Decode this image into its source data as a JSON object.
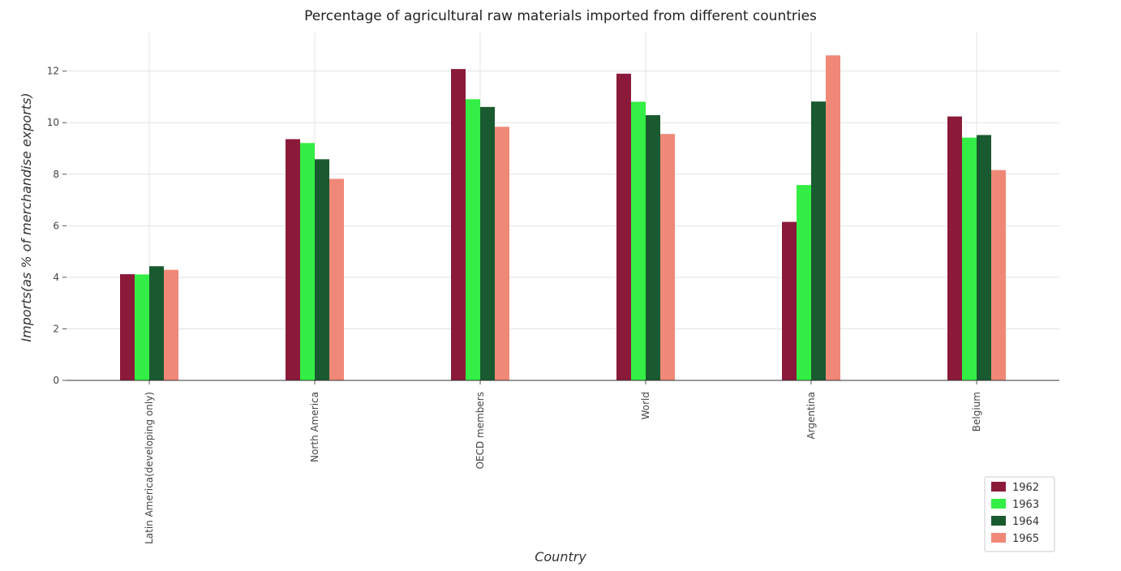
{
  "chart_data": {
    "type": "bar",
    "title": "Percentage of agricultural raw materials imported from different countries",
    "xlabel": "Country",
    "ylabel": "Imports(as % of merchandise exports)",
    "categories": [
      "Latin America(developing only)",
      "North America",
      "OECD members",
      "World",
      "Argentina",
      "Belgium"
    ],
    "series": [
      {
        "name": "1962",
        "color": "#8b1a3a",
        "values": [
          4.12,
          9.36,
          12.08,
          11.9,
          6.15,
          10.24
        ]
      },
      {
        "name": "1963",
        "color": "#33ee44",
        "values": [
          4.11,
          9.21,
          10.91,
          10.81,
          7.58,
          9.42
        ]
      },
      {
        "name": "1964",
        "color": "#1a5a30",
        "values": [
          4.43,
          8.58,
          10.61,
          10.29,
          10.82,
          9.52
        ]
      },
      {
        "name": "1965",
        "color": "#f08878",
        "values": [
          4.29,
          7.82,
          9.84,
          9.56,
          12.61,
          8.16
        ]
      }
    ],
    "ylim": [
      0,
      13.5
    ],
    "yticks": [
      0,
      2,
      4,
      6,
      8,
      10,
      12
    ],
    "grid": true,
    "legend_position": "bottom-right"
  }
}
